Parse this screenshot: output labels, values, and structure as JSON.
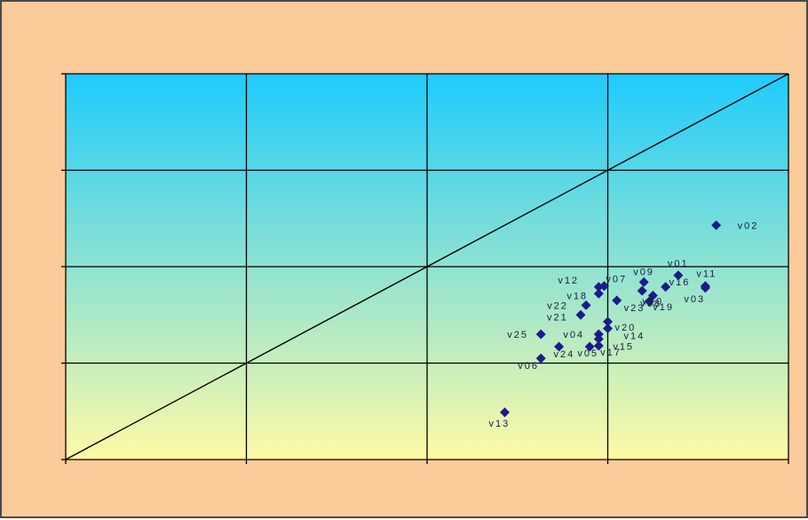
{
  "colors": {
    "background": "#fbcb99",
    "plot_top": "#1ecbfd",
    "plot_bottom": "#fffaa6",
    "grid": "#000000",
    "marker": "#1b1b8c"
  },
  "chart_data": {
    "type": "scatter",
    "title": "",
    "xlabel": "",
    "ylabel": "",
    "xlim": [
      0,
      4
    ],
    "ylim": [
      0,
      4
    ],
    "x_ticks": [
      0,
      1,
      2,
      3,
      4
    ],
    "y_ticks": [
      0,
      1,
      2,
      3,
      4
    ],
    "grid": true,
    "legend": "none",
    "reference_line": {
      "from": [
        0,
        0
      ],
      "to": [
        4,
        4
      ]
    },
    "points": [
      {
        "label": "v01",
        "x": 3.39,
        "y": 1.91
      },
      {
        "label": "v02",
        "x": 3.6,
        "y": 2.43
      },
      {
        "label": "v03",
        "x": 3.54,
        "y": 1.78
      },
      {
        "label": "v04",
        "x": 2.95,
        "y": 1.3
      },
      {
        "label": "v05",
        "x": 2.95,
        "y": 1.18
      },
      {
        "label": "v06",
        "x": 2.63,
        "y": 1.05
      },
      {
        "label": "v07",
        "x": 2.98,
        "y": 1.8
      },
      {
        "label": "v08",
        "x": 3.19,
        "y": 1.75
      },
      {
        "label": "v09",
        "x": 3.2,
        "y": 1.84
      },
      {
        "label": "v10",
        "x": 3.25,
        "y": 1.7
      },
      {
        "label": "v11",
        "x": 3.54,
        "y": 1.8
      },
      {
        "label": "v12",
        "x": 2.95,
        "y": 1.79
      },
      {
        "label": "v13",
        "x": 2.43,
        "y": 0.49
      },
      {
        "label": "v14",
        "x": 3.0,
        "y": 1.36
      },
      {
        "label": "v15",
        "x": 2.95,
        "y": 1.25
      },
      {
        "label": "v16",
        "x": 3.32,
        "y": 1.79
      },
      {
        "label": "v17",
        "x": 2.9,
        "y": 1.17
      },
      {
        "label": "v18",
        "x": 2.95,
        "y": 1.72
      },
      {
        "label": "v19",
        "x": 3.23,
        "y": 1.64
      },
      {
        "label": "v20",
        "x": 3.0,
        "y": 1.43
      },
      {
        "label": "v21",
        "x": 2.85,
        "y": 1.5
      },
      {
        "label": "v22",
        "x": 2.88,
        "y": 1.6
      },
      {
        "label": "v23",
        "x": 3.05,
        "y": 1.65
      },
      {
        "label": "v24",
        "x": 2.73,
        "y": 1.17
      },
      {
        "label": "v25",
        "x": 2.63,
        "y": 1.3
      }
    ],
    "label_texts": {
      "v01": "v01",
      "v02": "v02",
      "v03": "v03",
      "v04": "v04",
      "v05": "v05",
      "v06": "v06",
      "v07": "v07",
      "v08": "v08",
      "v09": "v09",
      "v10": "v10",
      "v11": "v11",
      "v12": "v12",
      "v13": "v13",
      "v14": "v14",
      "v15": "v15",
      "v16": "v16",
      "v17": "v17",
      "v18": "v18",
      "v19": "v19",
      "v20": "v20",
      "v21": "v21",
      "v22": "v22",
      "v23": "v23",
      "v24": "v24",
      "v25": "v25"
    }
  }
}
